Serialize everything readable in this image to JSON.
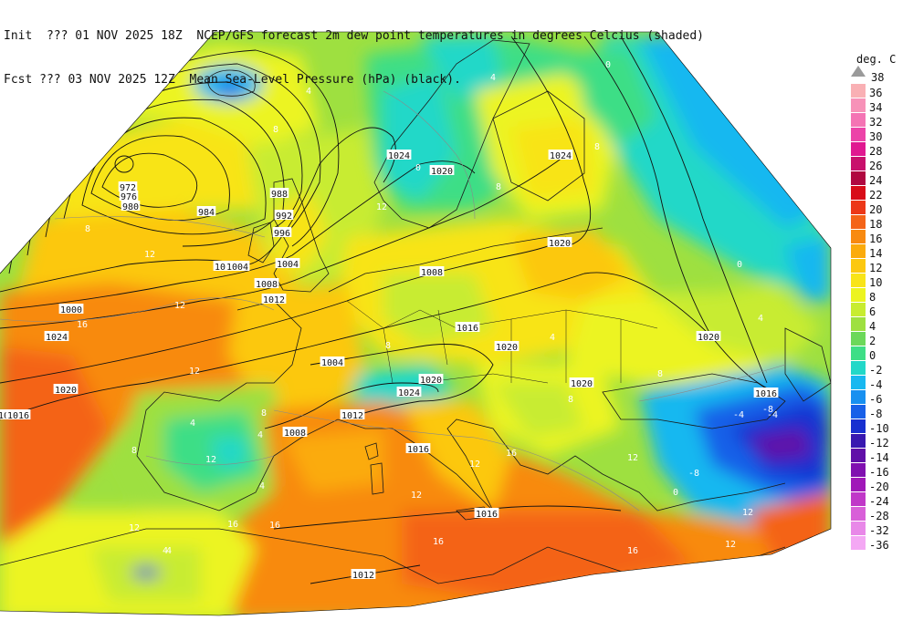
{
  "header": {
    "line1": "Init  ??? 01 NOV 2025 18Z  NCEP/GFS forecast 2m dew point temperatures in degrees Celcius (shaded)",
    "line2": "Fcst ??? 03 NOV 2025 12Z  Mean Sea-Level Pressure (hPa) (black)."
  },
  "legend": {
    "title": "deg. C",
    "top_label": "38",
    "levels": [
      {
        "label": "36",
        "color": "#f9b0b4"
      },
      {
        "label": "34",
        "color": "#f792b8"
      },
      {
        "label": "32",
        "color": "#f474b4"
      },
      {
        "label": "30",
        "color": "#ec44a8"
      },
      {
        "label": "28",
        "color": "#e01890"
      },
      {
        "label": "26",
        "color": "#c8106c"
      },
      {
        "label": "24",
        "color": "#b00840"
      },
      {
        "label": "22",
        "color": "#d80c18"
      },
      {
        "label": "20",
        "color": "#ec3818"
      },
      {
        "label": "18",
        "color": "#f46418"
      },
      {
        "label": "16",
        "color": "#f88a10"
      },
      {
        "label": "14",
        "color": "#fbab0c"
      },
      {
        "label": "12",
        "color": "#fcc810"
      },
      {
        "label": "10",
        "color": "#f8e418"
      },
      {
        "label": "8",
        "color": "#ecf420"
      },
      {
        "label": "6",
        "color": "#c8ec30"
      },
      {
        "label": "4",
        "color": "#9ee040"
      },
      {
        "label": "2",
        "color": "#6cd85a"
      },
      {
        "label": "0",
        "color": "#3ede86"
      },
      {
        "label": "-2",
        "color": "#22d8c8"
      },
      {
        "label": "-4",
        "color": "#18b8f0"
      },
      {
        "label": "-6",
        "color": "#1890f0"
      },
      {
        "label": "-8",
        "color": "#1860e8"
      },
      {
        "label": "-10",
        "color": "#1830d0"
      },
      {
        "label": "-12",
        "color": "#3818b0"
      },
      {
        "label": "-14",
        "color": "#6010a8"
      },
      {
        "label": "-16",
        "color": "#8010b0"
      },
      {
        "label": "-20",
        "color": "#a018b8"
      },
      {
        "label": "-24",
        "color": "#c038c8"
      },
      {
        "label": "-28",
        "color": "#d860d8"
      },
      {
        "label": "-32",
        "color": "#e888e8"
      },
      {
        "label": "-36",
        "color": "#f4a8f4"
      }
    ]
  },
  "colors": {
    "isobar": "#111111",
    "border": "#1a1a1a",
    "label_bg": "#ffffff",
    "dew_label": "#ffffff"
  },
  "isobars": [
    {
      "value": "972",
      "label": "972"
    },
    {
      "value": "976",
      "label": "976"
    },
    {
      "value": "980",
      "label": "980"
    },
    {
      "value": "984",
      "label": "984"
    },
    {
      "value": "988",
      "label": "988"
    },
    {
      "value": "992",
      "label": "992"
    },
    {
      "value": "996",
      "label": "996"
    },
    {
      "value": "1000",
      "label": "1000"
    },
    {
      "value": "1004",
      "label": "1004"
    },
    {
      "value": "1008",
      "label": "1008"
    },
    {
      "value": "1012",
      "label": "1012"
    },
    {
      "value": "1016",
      "label": "1016"
    },
    {
      "value": "1020",
      "label": "1020"
    },
    {
      "value": "1024",
      "label": "1024"
    }
  ],
  "pressure_labels": [
    "972",
    "976",
    "980",
    "984",
    "988",
    "992",
    "996",
    "1000",
    "1004",
    "1008",
    "1012",
    "1016",
    "1020",
    "1024",
    "1000",
    "1004",
    "1008",
    "1012",
    "1016",
    "1020",
    "1024",
    "1016",
    "1020",
    "1020",
    "1016",
    "1016",
    "1020",
    "1020",
    "1024",
    "1024",
    "1020",
    "1012",
    "1008",
    "1004",
    "1016"
  ],
  "dew_labels": [
    "4",
    "8",
    "8",
    "12",
    "12",
    "16",
    "12",
    "12",
    "8",
    "4",
    "4",
    "8",
    "4",
    "12",
    "16",
    "16",
    "12",
    "12",
    "8",
    "4",
    "0",
    "-4",
    "-8",
    "4",
    "8",
    "12",
    "16",
    "12",
    "8",
    "8",
    "4",
    "0",
    "12",
    "16",
    "16",
    "12",
    "4",
    "0",
    "0",
    "8",
    "-8",
    "-4",
    "4"
  ]
}
